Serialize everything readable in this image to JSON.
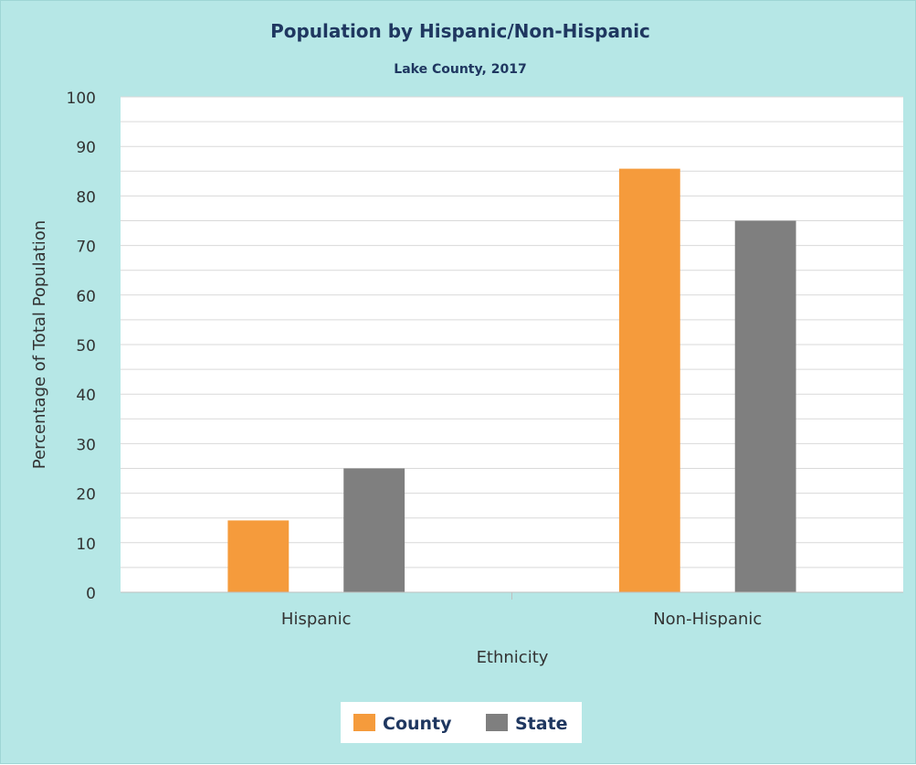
{
  "chart_data": {
    "type": "bar",
    "title": "Population by Hispanic/Non-Hispanic",
    "subtitle": "Lake County, 2017",
    "xlabel": "Ethnicity",
    "ylabel": "Percentage of Total Population",
    "categories": [
      "Hispanic",
      "Non-Hispanic"
    ],
    "series": [
      {
        "name": "County",
        "values": [
          14.5,
          85.5
        ],
        "color": "#f59b3c"
      },
      {
        "name": "State",
        "values": [
          25.0,
          75.0
        ],
        "color": "#7f7f7f"
      }
    ],
    "ylim": [
      0,
      100
    ],
    "yticks": [
      "0",
      "10",
      "20",
      "30",
      "40",
      "50",
      "60",
      "70",
      "80",
      "90",
      "100"
    ],
    "grid": true,
    "legend_position": "bottom",
    "colors": {
      "background": "#b6e7e6",
      "plot_area": "#ffffff",
      "gridline": "#d9d9d9"
    }
  }
}
